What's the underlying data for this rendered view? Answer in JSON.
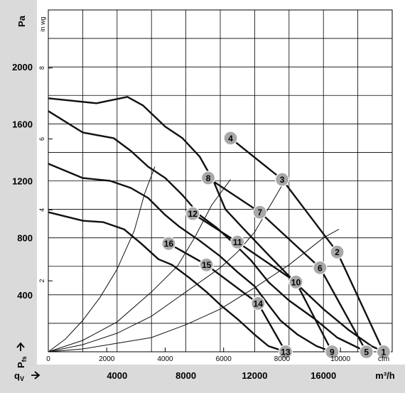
{
  "chart_data": {
    "type": "line",
    "y_unit_pa": "Pa",
    "y_unit_inwg": "in wg",
    "x_unit_cfm": "cfm",
    "x_unit_m3h": "m³/h",
    "y_axis_symbol": "P",
    "y_axis_subscript": "fs",
    "x_axis_symbol": "q",
    "x_axis_subscript": "V",
    "xlim_m3h": [
      0,
      20000
    ],
    "ylim_pa": [
      0,
      2400
    ],
    "pa_ticks": [
      "400",
      "800",
      "1200",
      "1600",
      "2000"
    ],
    "inwg_ticks": [
      "2",
      "4",
      "6",
      "8"
    ],
    "cfm_ticks": [
      "0",
      "2000",
      "4000",
      "6000",
      "8000",
      "10000"
    ],
    "m3h_ticks": [
      "4000",
      "8000",
      "12000",
      "16000"
    ],
    "grid": true,
    "fan_curves": [
      {
        "x": [
          0,
          2800,
          4600,
          5500,
          6800,
          7800,
          8800,
          9600,
          10300,
          11300,
          12800,
          14500,
          16000,
          17500,
          18800,
          19500
        ],
        "y": [
          1780,
          1745,
          1790,
          1730,
          1580,
          1500,
          1370,
          1200,
          1000,
          870,
          680,
          470,
          300,
          150,
          40,
          0
        ]
      },
      {
        "x": [
          0,
          2000,
          3800,
          4800,
          5800,
          6800,
          7800,
          8800,
          9800,
          10800,
          11800,
          12800,
          14000,
          15500,
          16800,
          18500
        ],
        "y": [
          1690,
          1540,
          1500,
          1410,
          1300,
          1220,
          1100,
          960,
          870,
          760,
          640,
          490,
          360,
          230,
          100,
          0
        ]
      },
      {
        "x": [
          0,
          2000,
          3600,
          4800,
          5800,
          6800,
          7600,
          8800,
          10000,
          11000,
          12000,
          12800,
          13500,
          14500,
          15600,
          16500
        ],
        "y": [
          1320,
          1220,
          1200,
          1150,
          1080,
          960,
          880,
          780,
          670,
          560,
          460,
          330,
          220,
          120,
          40,
          0
        ]
      },
      {
        "x": [
          0,
          2000,
          3200,
          4400,
          5400,
          6400,
          7200,
          8200,
          9200,
          10000,
          11000,
          12000,
          12800,
          13800
        ],
        "y": [
          980,
          920,
          910,
          860,
          760,
          650,
          610,
          520,
          420,
          330,
          230,
          120,
          40,
          0
        ]
      }
    ],
    "system_curves": [
      {
        "x": [
          0,
          1000,
          2000,
          3000,
          4000,
          5000,
          5600,
          6200
        ],
        "y": [
          0,
          90,
          220,
          380,
          580,
          850,
          1110,
          1300
        ]
      },
      {
        "x": [
          0,
          2000,
          4000,
          6000,
          7500,
          8500,
          9500,
          10600
        ],
        "y": [
          0,
          80,
          210,
          420,
          600,
          800,
          1030,
          1210
        ]
      },
      {
        "x": [
          0,
          2000,
          4000,
          6000,
          8000,
          10000,
          11000,
          12000,
          13600
        ],
        "y": [
          0,
          50,
          130,
          250,
          420,
          590,
          700,
          840,
          1170
        ]
      },
      {
        "x": [
          0,
          2000,
          4000,
          6000,
          8000,
          10000,
          12000,
          14000,
          16000,
          16900
        ],
        "y": [
          0,
          20,
          60,
          100,
          190,
          300,
          450,
          610,
          800,
          860
        ]
      }
    ],
    "points": [
      {
        "label": "1",
        "x": 19500,
        "y": 0
      },
      {
        "label": "2",
        "x": 16800,
        "y": 700
      },
      {
        "label": "3",
        "x": 13600,
        "y": 1210
      },
      {
        "label": "4",
        "x": 10600,
        "y": 1500
      },
      {
        "label": "5",
        "x": 18500,
        "y": 0
      },
      {
        "label": "6",
        "x": 15800,
        "y": 590
      },
      {
        "label": "7",
        "x": 12300,
        "y": 980
      },
      {
        "label": "8",
        "x": 9300,
        "y": 1220
      },
      {
        "label": "9",
        "x": 16500,
        "y": 0
      },
      {
        "label": "10",
        "x": 14400,
        "y": 490
      },
      {
        "label": "11",
        "x": 11000,
        "y": 770
      },
      {
        "label": "12",
        "x": 8400,
        "y": 970
      },
      {
        "label": "13",
        "x": 13800,
        "y": 0
      },
      {
        "label": "14",
        "x": 12200,
        "y": 340
      },
      {
        "label": "15",
        "x": 9200,
        "y": 610
      },
      {
        "label": "16",
        "x": 7000,
        "y": 760
      }
    ]
  }
}
